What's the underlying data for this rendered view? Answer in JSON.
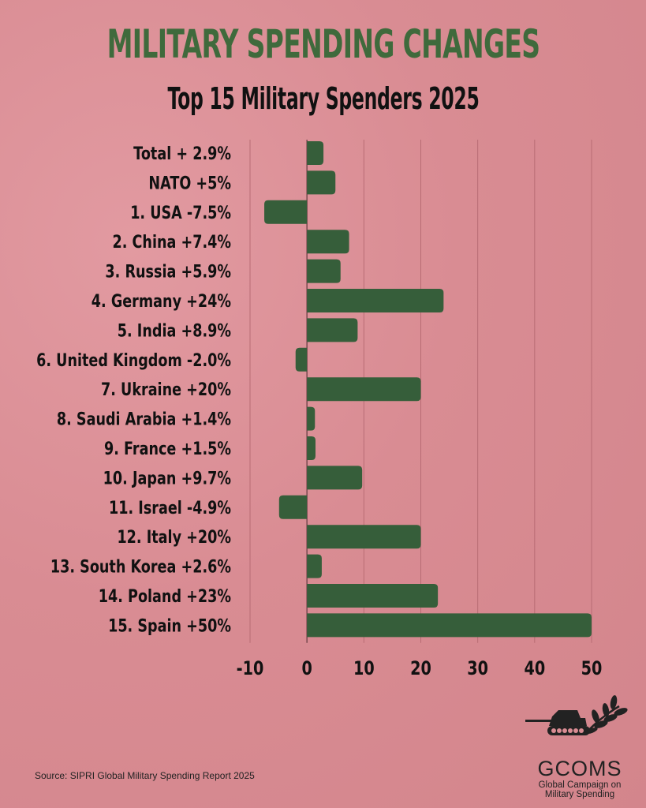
{
  "colors": {
    "bar": "#365e3a",
    "title": "#3f6a3c",
    "grid": "#b86c74"
  },
  "chart_data": {
    "type": "bar",
    "orientation": "horizontal",
    "title": "MILITARY SPENDING CHANGES",
    "subtitle": "Top 15 Military Spenders 2025",
    "categories": [
      "Total + 2.9%",
      "NATO +5%",
      "1. USA -7.5%",
      "2. China +7.4%",
      "3. Russia +5.9%",
      "4. Germany +24%",
      "5. India +8.9%",
      "6. United Kingdom -2.0%",
      "7. Ukraine +20%",
      "8. Saudi Arabia +1.4%",
      "9. France +1.5%",
      "10. Japan +9.7%",
      "11. Israel -4.9%",
      "12. Italy +20%",
      "13. South Korea +2.6%",
      "14. Poland +23%",
      "15. Spain +50%"
    ],
    "values": [
      2.9,
      5,
      -7.5,
      7.4,
      5.9,
      24,
      8.9,
      -2.0,
      20,
      1.4,
      1.5,
      9.7,
      -4.9,
      20,
      2.6,
      23,
      50
    ],
    "xlim": [
      -10,
      50
    ],
    "xticks": [
      "-10",
      "0",
      "10",
      "20",
      "30",
      "40",
      "50"
    ],
    "xtick_values": [
      -10,
      0,
      10,
      20,
      30,
      40,
      50
    ],
    "xlabel": "",
    "ylabel": "",
    "grid": true
  },
  "footer": {
    "source": "Source: SIPRI Global Military Spending Report 2025"
  },
  "logo": {
    "name": "GCOMS",
    "line1": "Global Campaign on",
    "line2": "Military Spending"
  }
}
